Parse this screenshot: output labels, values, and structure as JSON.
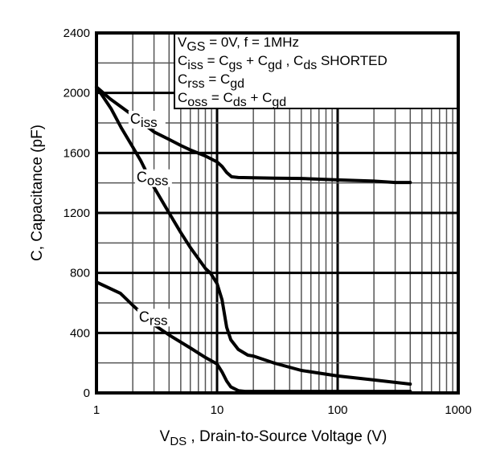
{
  "chart_data": {
    "type": "line",
    "title": "",
    "xlabel": {
      "main": "V",
      "sub": "DS",
      "rest": " , Drain-to-Source Voltage (V)"
    },
    "ylabel": "C, Capacitance (pF)",
    "xscale": "log",
    "xlim": [
      1,
      1000
    ],
    "ylim": [
      0,
      2400
    ],
    "x_ticks": [
      1,
      10,
      100,
      1000
    ],
    "x_tick_labels": [
      "1",
      "10",
      "100",
      "1000"
    ],
    "y_ticks": [
      0,
      400,
      800,
      1200,
      1600,
      2000,
      2400
    ],
    "y_tick_labels": [
      "0",
      "400",
      "800",
      "1200",
      "1600",
      "2000",
      "2400"
    ],
    "y_minor_step": 200,
    "grid": true,
    "legend_box": {
      "placement": "top-right",
      "lines": [
        [
          {
            "t": "V"
          },
          {
            "t": "GS",
            "sub": true
          },
          {
            "t": " = 0V,        f = 1MHz"
          }
        ],
        [
          {
            "t": "C"
          },
          {
            "t": "iss",
            "sub": true
          },
          {
            "t": " = C"
          },
          {
            "t": "gs",
            "sub": true
          },
          {
            "t": " + C"
          },
          {
            "t": "gd",
            "sub": true
          },
          {
            "t": " ,   C"
          },
          {
            "t": "ds",
            "sub": true
          },
          {
            "t": "  SHORTED"
          }
        ],
        [
          {
            "t": "C"
          },
          {
            "t": "rss",
            "sub": true
          },
          {
            "t": " = C"
          },
          {
            "t": "gd",
            "sub": true
          }
        ],
        [
          {
            "t": "C"
          },
          {
            "t": "oss",
            "sub": true
          },
          {
            "t": " = C"
          },
          {
            "t": "ds",
            "sub": true
          },
          {
            "t": " + C"
          },
          {
            "t": "gd",
            "sub": true
          }
        ]
      ]
    },
    "series": [
      {
        "name": "Ciss",
        "label_main": "C",
        "label_sub": "iss",
        "label_at": {
          "x": 1.9,
          "y": 1795
        },
        "x": [
          1,
          1.3,
          1.85,
          2.5,
          3,
          4,
          5,
          6,
          8,
          10,
          11,
          12,
          13.2,
          15,
          20,
          30,
          50,
          100,
          200,
          300,
          400
        ],
        "y": [
          2040,
          1960,
          1870,
          1790,
          1740,
          1690,
          1650,
          1620,
          1580,
          1540,
          1510,
          1470,
          1441,
          1436,
          1434,
          1432,
          1430,
          1420,
          1412,
          1403,
          1403
        ]
      },
      {
        "name": "Coss",
        "label_main": "C",
        "label_sub": "oss",
        "label_at": {
          "x": 2.15,
          "y": 1405
        },
        "x": [
          1,
          1.32,
          1.6,
          2,
          2.33,
          3,
          4,
          5,
          6,
          8,
          8.8,
          10,
          11,
          12,
          13,
          15,
          18,
          20,
          30,
          50,
          100,
          200,
          400
        ],
        "y": [
          2040,
          1896,
          1770,
          1639,
          1548,
          1371,
          1200,
          1070,
          970,
          830,
          800,
          729,
          621,
          439,
          354,
          290,
          252,
          246,
          198,
          150,
          113,
          86,
          59
        ],
        "label_gap": [
          2.35,
          3.0
        ]
      },
      {
        "name": "Crss",
        "label_main": "C",
        "label_sub": "rss",
        "label_at": {
          "x": 2.25,
          "y": 475
        },
        "x": [
          1,
          1.58,
          2,
          3,
          4,
          6,
          8,
          10,
          11,
          12,
          13,
          15,
          17,
          20,
          30,
          50,
          100,
          200,
          400
        ],
        "y": [
          739,
          664,
          584,
          455,
          386,
          300,
          236,
          193,
          140,
          80,
          40,
          15,
          10,
          10,
          10,
          10,
          10,
          10,
          10
        ]
      }
    ]
  }
}
